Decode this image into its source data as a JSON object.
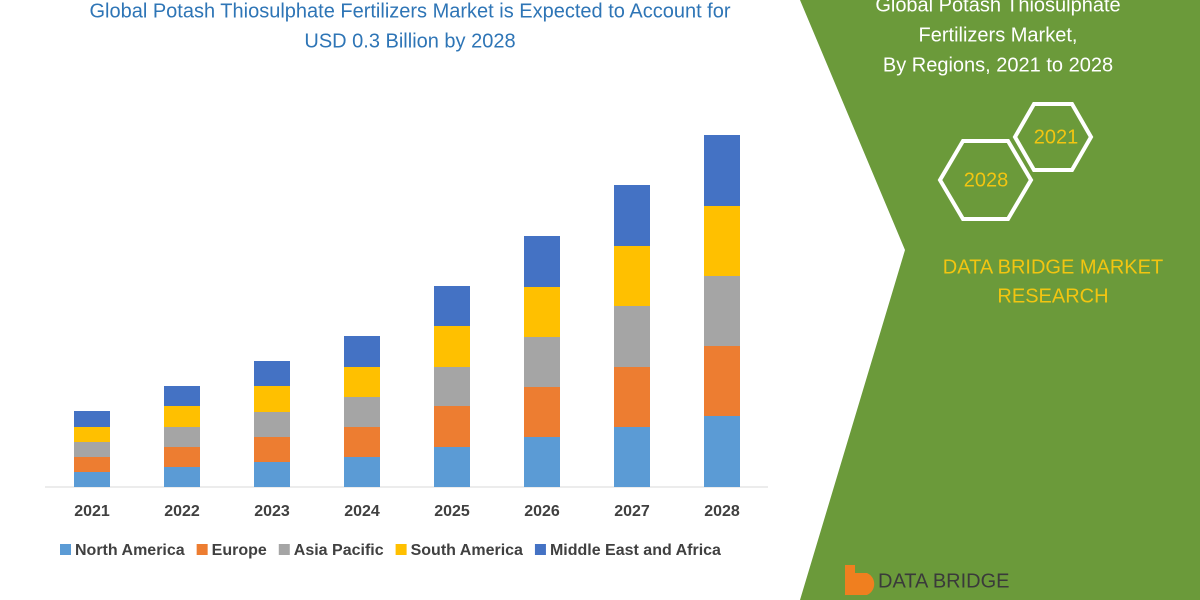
{
  "chart_data": {
    "type": "stacked_bar",
    "title": [
      "Global Potash Thiosulphate Fertilizers Market is Expected to Account for",
      "USD 0.3 Billion by 2028"
    ],
    "categories": [
      "2021",
      "2022",
      "2023",
      "2024",
      "2025",
      "2026",
      "2027",
      "2028"
    ],
    "series": [
      {
        "name": "North America",
        "color": "#5b9bd5",
        "values": [
          15,
          20,
          25,
          30,
          40,
          50,
          60,
          71
        ]
      },
      {
        "name": "Europe",
        "color": "#ed7d31",
        "values": [
          15,
          20,
          25,
          30,
          41,
          50,
          60,
          70
        ]
      },
      {
        "name": "Asia Pacific",
        "color": "#a5a5a5",
        "values": [
          15,
          20,
          25,
          30,
          39,
          50,
          61,
          70
        ]
      },
      {
        "name": "South America",
        "color": "#ffc000",
        "values": [
          15,
          21,
          26,
          30,
          41,
          50,
          60,
          70
        ]
      },
      {
        "name": "Middle East and Africa",
        "color": "#4472c4",
        "values": [
          16,
          20,
          25,
          31,
          40,
          51,
          61,
          71
        ]
      }
    ]
  },
  "side_panel": {
    "title": [
      "Global Potash Thiosulphate",
      "Fertilizers Market,",
      "By Regions, 2021 to 2028"
    ],
    "badges": [
      "2021",
      "2028"
    ],
    "brand": [
      "DATA BRIDGE MARKET",
      "RESEARCH"
    ],
    "logo": "DATA BRIDGE"
  }
}
